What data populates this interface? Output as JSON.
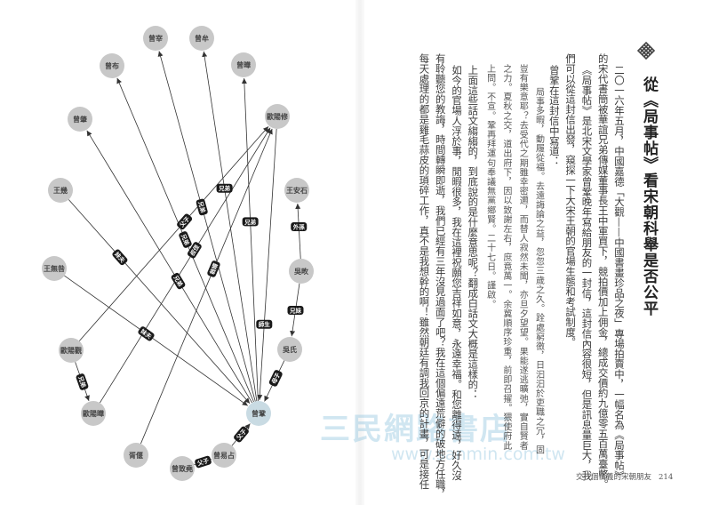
{
  "diagram": {
    "center_node": "曾鞏",
    "nodes": [
      "曾宰",
      "曾牟",
      "曾布",
      "曾曄",
      "曾肇",
      "歐陽修",
      "王幾",
      "王安石",
      "王無咎",
      "吳畋",
      "歐陽觀",
      "吳氏",
      "歐陽曄",
      "曾鞏",
      "胥偃",
      "曾易占",
      "曾致堯"
    ],
    "edges": [
      {
        "from": "曾鞏",
        "to": "曾宰",
        "label": "兄弟"
      },
      {
        "from": "曾鞏",
        "to": "曾牟",
        "label": "兄弟"
      },
      {
        "from": "曾鞏",
        "to": "曾布",
        "label": "兄弟"
      },
      {
        "from": "曾鞏",
        "to": "曾曄",
        "label": "兄弟"
      },
      {
        "from": "曾鞏",
        "to": "曾肇",
        "label": "兄弟"
      },
      {
        "from": "王幾",
        "to": "曾鞏",
        "label": "妹夫"
      },
      {
        "from": "王無咎",
        "to": "曾鞏",
        "label": "妹夫"
      },
      {
        "from": "歐陽觀",
        "to": "歐陽修",
        "label": "父子"
      },
      {
        "from": "歐陽觀",
        "to": "歐陽曄",
        "label": "兄弟"
      },
      {
        "from": "歐陽曄",
        "to": "歐陽修",
        "label": "叔侄"
      },
      {
        "from": "胥偃",
        "to": "歐陽修",
        "label": "翁婿"
      },
      {
        "from": "歐陽修",
        "to": "曾鞏",
        "label": "師生"
      },
      {
        "from": "吳畋",
        "to": "王安石",
        "label": "外孫"
      },
      {
        "from": "吳畋",
        "to": "吳氏",
        "label": "兄妹"
      },
      {
        "from": "吳氏",
        "to": "曾鞏",
        "label": "母子"
      },
      {
        "from": "曾易占",
        "to": "曾鞏",
        "label": "父子"
      },
      {
        "from": "曾致堯",
        "to": "曾易占",
        "label": "父子"
      }
    ],
    "colors": {
      "node": "#c8c8c8",
      "center_node": "#c9dbe3",
      "edge": "#333333",
      "label_bg": "#1a1a1a"
    }
  },
  "article": {
    "title": "從《局事帖》看宋朝科舉是否公平",
    "ornament_icon": "endless-knot-icon",
    "columns": [
      {
        "text": "二〇一六年五月，中國嘉德「大觀——中國書畫珍品之夜」專場拍賣中，一幅名為《局事帖》",
        "style": "indent"
      },
      {
        "text": "的宋代書簡被華誼兄弟傳媒董事長王中軍買下，競拍價加上佣金，總成交價約九億零五百萬臺幣。",
        "style": "normal"
      },
      {
        "text": "《局事帖》是北宋文學家曾鞏晚年寫給朋友的一封信，這封信內容很短，但是訊息量巨大，我",
        "style": "indent"
      },
      {
        "text": "們可以從這封信出發，窺探一下大宋王朝的官場生態和考試制度。",
        "style": "normal"
      },
      {
        "text": "曾鞏在這封信中寫道：",
        "style": "indent"
      },
      {
        "text": "局事多暇，動履從福。去遠誨論之益，忽忽三歲之久。跧處窮徼，日汩汩於吏職之冗，固",
        "style": "quote"
      },
      {
        "text": "豈有樂意耶？去受代之期雖幸密邇，而替人寂然未聞，亦旦夕望望。果能遂逃曠弛，實自賢者",
        "style": "quote-cont"
      },
      {
        "text": "之力。夏秋之交，道出府下，因以致謝左右，庶竟萬一。余冀順序珍重，前即召擢。猥使府此",
        "style": "quote-cont"
      },
      {
        "text": "上問。不宣。鞏再拜運句奉議無黨鄉賢。二十七日。謹啟。",
        "style": "quote-cont"
      },
      {
        "text": "上面這些話文縐縐的，到底說的是什麼意思呢？翻成白話文大概是這樣的：",
        "style": "indent"
      },
      {
        "text": "如今的官場人浮於事，閒暇很多，我在這裡祝願您吉祥如意，永遠幸福。和您離得遠，好久沒",
        "style": "indent"
      },
      {
        "text": "有聆聽您的教誨，時間轉瞬即逝，我們已經有三年沒見過面了吧？我在這個偏遠荒僻的破地方任職，",
        "style": "normal"
      },
      {
        "text": "每天處理的都是雞毛蒜皮的瑣碎工作，真不是我想幹的啊！雖然朝廷有調我回京的計畫，可是接任",
        "style": "normal"
      }
    ]
  },
  "footer": {
    "running_title": "交一個情義的宋朝朋友",
    "page_number": "214"
  },
  "watermark": {
    "name": "三民網路書店",
    "url": "www.sanmin.com.tw"
  }
}
